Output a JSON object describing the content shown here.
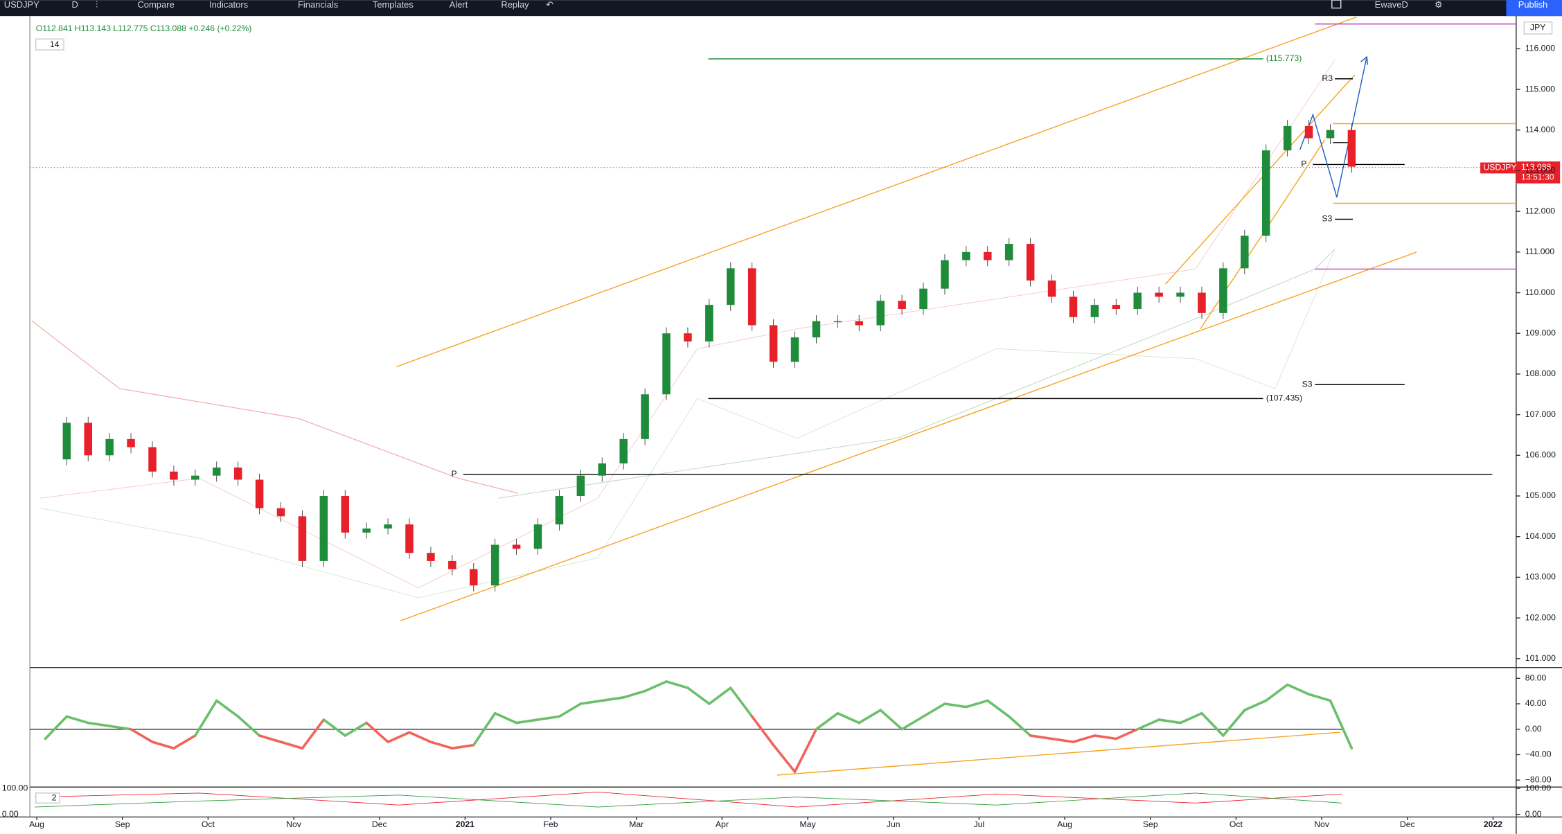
{
  "toolbar": {
    "symbol": "USDJPY",
    "interval": "D",
    "items": [
      "Compare",
      "Indicators",
      "Financials",
      "Templates",
      "Alert",
      "Replay"
    ],
    "layout": "EwaveD",
    "publish": "Publish"
  },
  "legend": {
    "ohlc": "O112.841 H113.143 L112.775 C113.088 +0.246 (+0.22%)",
    "indicator_param": "14",
    "lower_param": "2"
  },
  "price_tag": {
    "symbol": "USDJPY",
    "price": "113.088",
    "countdown": "13:51:30",
    "currency": "JPY"
  },
  "annotations": [
    "(115.773)",
    "(107.435)",
    "R3",
    "S3",
    "S3",
    "P",
    "P"
  ],
  "chart_data": [
    {
      "type": "candlestick",
      "name": "USDJPY",
      "x": [
        0.1,
        0.35,
        0.6,
        0.85,
        1.1,
        1.35,
        1.6,
        1.85,
        2.1,
        2.35,
        2.6,
        2.85,
        3.1,
        3.35,
        3.6,
        3.85,
        4.1,
        4.35,
        4.6,
        4.85,
        5.1,
        5.35,
        5.6,
        5.85,
        6.1,
        6.35,
        6.6,
        6.85,
        7.1,
        7.35,
        7.6,
        7.85,
        8.1,
        8.35,
        8.6,
        8.85,
        9.1,
        9.35,
        9.6,
        9.85,
        10.1,
        10.35,
        10.6,
        10.85,
        11.1,
        11.35,
        11.6,
        11.85,
        12.1,
        12.35,
        12.6,
        12.85,
        13.1,
        13.35,
        13.6,
        13.85,
        14.1,
        14.35,
        14.6,
        14.85,
        15.1,
        15.35
      ],
      "values": [
        105.9,
        106.8,
        106.0,
        106.4,
        106.2,
        105.6,
        105.4,
        105.5,
        105.7,
        105.4,
        104.7,
        104.5,
        103.4,
        105.0,
        104.1,
        104.2,
        104.3,
        103.6,
        103.4,
        103.2,
        102.8,
        103.8,
        103.7,
        104.3,
        105.0,
        105.5,
        105.8,
        106.4,
        107.5,
        109.0,
        108.8,
        109.7,
        110.6,
        109.2,
        108.3,
        108.9,
        109.3,
        109.3,
        109.2,
        109.8,
        109.6,
        110.1,
        110.8,
        111.0,
        110.8,
        111.2,
        110.3,
        109.9,
        109.4,
        109.7,
        109.6,
        110.0,
        109.9,
        110.0,
        109.5,
        110.6,
        111.4,
        113.5,
        114.1,
        113.8,
        114.0,
        113.1
      ],
      "up_color": "#1e8c3a",
      "down_color": "#e8202a",
      "xlim": [
        -0.08,
        17.27
      ],
      "xticks": [
        {
          "value": 0,
          "label": "Aug"
        },
        {
          "value": 1,
          "label": "Sep"
        },
        {
          "value": 2,
          "label": "Oct"
        },
        {
          "value": 3,
          "label": "Nov"
        },
        {
          "value": 4,
          "label": "Dec"
        },
        {
          "value": 5,
          "label": "2021"
        },
        {
          "value": 6,
          "label": "Feb"
        },
        {
          "value": 7,
          "label": "Mar"
        },
        {
          "value": 8,
          "label": "Apr"
        },
        {
          "value": 9,
          "label": "May"
        },
        {
          "value": 10,
          "label": "Jun"
        },
        {
          "value": 11,
          "label": "Jul"
        },
        {
          "value": 12,
          "label": "Aug"
        },
        {
          "value": 13,
          "label": "Sep"
        },
        {
          "value": 14,
          "label": "Oct"
        },
        {
          "value": 15,
          "label": "Nov"
        },
        {
          "value": 16,
          "label": "Dec"
        },
        {
          "value": 17,
          "label": "2022"
        }
      ],
      "ylim": [
        100.78,
        116.78
      ],
      "yticks": [
        {
          "value": 101,
          "label": "101.000"
        },
        {
          "value": 102,
          "label": "102.000"
        },
        {
          "value": 103,
          "label": "103.000"
        },
        {
          "value": 104,
          "label": "104.000"
        },
        {
          "value": 105,
          "label": "105.000"
        },
        {
          "value": 106,
          "label": "106.000"
        },
        {
          "value": 107,
          "label": "107.000"
        },
        {
          "value": 108,
          "label": "108.000"
        },
        {
          "value": 109,
          "label": "109.000"
        },
        {
          "value": 110,
          "label": "110.000"
        },
        {
          "value": 111,
          "label": "111.000"
        },
        {
          "value": 112,
          "label": "112.000"
        },
        {
          "value": 113,
          "label": "113.000"
        },
        {
          "value": 114,
          "label": "114.000"
        },
        {
          "value": 115,
          "label": "115.000"
        },
        {
          "value": 116,
          "label": "116.000"
        }
      ]
    },
    {
      "type": "line",
      "name": "Oscillator",
      "x": [
        0.1,
        0.35,
        0.6,
        0.85,
        1.1,
        1.35,
        1.6,
        1.85,
        2.1,
        2.35,
        2.6,
        2.85,
        3.1,
        3.35,
        3.6,
        3.85,
        4.1,
        4.35,
        4.6,
        4.85,
        5.1,
        5.35,
        5.6,
        5.85,
        6.1,
        6.35,
        6.6,
        6.85,
        7.1,
        7.35,
        7.6,
        7.85,
        8.1,
        8.35,
        8.6,
        8.85,
        9.1,
        9.35,
        9.6,
        9.85,
        10.1,
        10.35,
        10.6,
        10.85,
        11.1,
        11.35,
        11.6,
        11.85,
        12.1,
        12.35,
        12.6,
        12.85,
        13.1,
        13.35,
        13.6,
        13.85,
        14.1,
        14.35,
        14.6,
        14.85,
        15.1,
        15.35
      ],
      "values": [
        -15,
        20,
        10,
        5,
        0,
        -20,
        -30,
        -10,
        45,
        20,
        -10,
        -20,
        -30,
        15,
        -10,
        10,
        -20,
        -5,
        -20,
        -30,
        -25,
        25,
        10,
        15,
        20,
        40,
        45,
        50,
        60,
        75,
        65,
        40,
        65,
        20,
        -25,
        -67,
        0,
        25,
        10,
        30,
        0,
        20,
        40,
        35,
        45,
        20,
        -10,
        -15,
        -20,
        -10,
        -15,
        0,
        15,
        10,
        25,
        -10,
        30,
        45,
        70,
        55,
        45,
        -30
      ],
      "up_color": "#6bbf6b",
      "down_color": "#f0645a",
      "xlim": [
        -0.08,
        17.27
      ],
      "ylim": [
        -91,
        97
      ],
      "yticks": [
        {
          "value": -80,
          "label": "−80.00"
        },
        {
          "value": -40,
          "label": "−40.00"
        },
        {
          "value": 0,
          "label": "0.00"
        },
        {
          "value": 40,
          "label": "40.00"
        },
        {
          "value": 80,
          "label": "80.00"
        }
      ]
    },
    {
      "type": "empty",
      "name": "Lower",
      "ylim": [
        -10,
        105
      ],
      "yticks": [
        {
          "value": 0,
          "label": "0.00"
        },
        {
          "value": 100,
          "label": "100.00"
        }
      ]
    }
  ]
}
